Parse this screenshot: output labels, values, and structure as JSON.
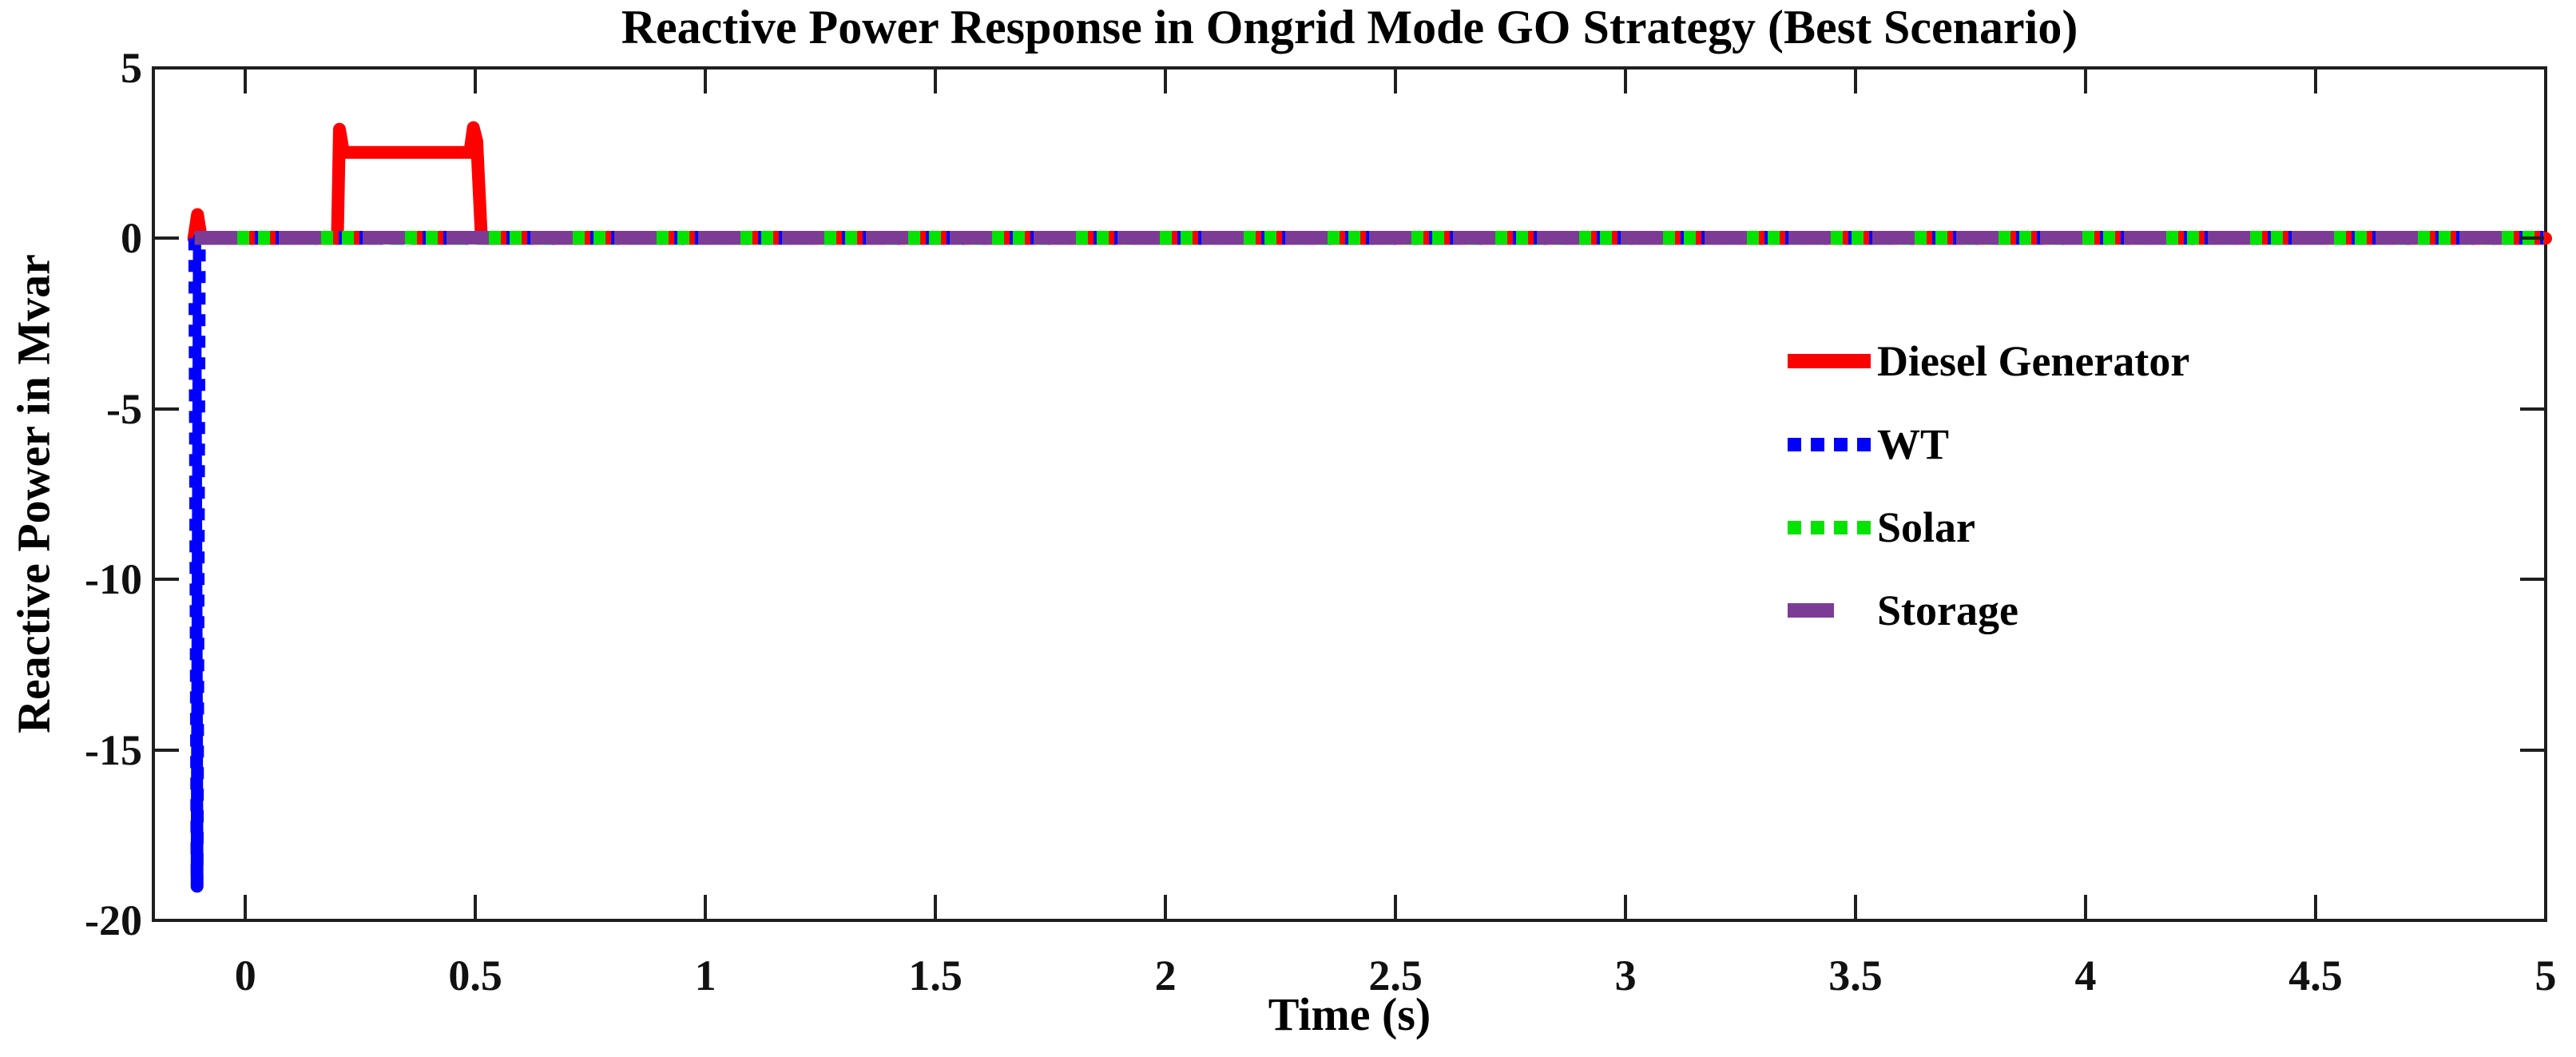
{
  "title": "Reactive Power Response in Ongrid Mode GO Strategy (Best Scenario)",
  "chart_data": {
    "type": "line",
    "title": "Reactive Power Response in Ongrid Mode GO Strategy (Best Scenario)",
    "xlabel": "Time (s)",
    "ylabel": "Reactive Power in Mvar",
    "xlim": [
      -0.2,
      5
    ],
    "ylim": [
      -20,
      5
    ],
    "grid": false,
    "box": true,
    "tick_direction": "in",
    "x_ticks": [
      0,
      0.5,
      1,
      1.5,
      2,
      2.5,
      3,
      3.5,
      4,
      4.5,
      5
    ],
    "x_tick_labels": [
      "0",
      "0.5",
      "1",
      "1.5",
      "2",
      "2.5",
      "3",
      "3.5",
      "4",
      "4.5",
      "5"
    ],
    "y_ticks": [
      5,
      0,
      -5,
      -10,
      -15,
      -20
    ],
    "y_tick_labels": [
      "5",
      "0",
      "-5",
      "-10",
      "-15",
      "-20"
    ],
    "legend_position": "middle-right",
    "series": [
      {
        "name": "Diesel Generator",
        "color": "#FF0000",
        "style": "solid",
        "points": [
          [
            -0.112,
            0
          ],
          [
            -0.104,
            0.7
          ],
          [
            -0.096,
            0
          ],
          [
            0.2,
            0
          ],
          [
            0.2045,
            3.2
          ],
          [
            0.213,
            2.52
          ],
          [
            0.488,
            2.52
          ],
          [
            0.4955,
            3.25
          ],
          [
            0.503,
            2.85
          ],
          [
            0.513,
            0
          ],
          [
            5,
            0
          ]
        ]
      },
      {
        "name": "WT",
        "color": "#0000FF",
        "style": "dotted",
        "points": [
          [
            -0.11,
            0
          ],
          [
            -0.105,
            -19
          ],
          [
            -0.1,
            0
          ],
          [
            5,
            0
          ]
        ]
      },
      {
        "name": "Solar",
        "color": "#00E400",
        "style": "dotted",
        "points": [
          [
            -0.11,
            0
          ],
          [
            5,
            0
          ]
        ]
      },
      {
        "name": "Storage",
        "color": "#7C3C96",
        "style": "dashed",
        "points": [
          [
            -0.11,
            0
          ],
          [
            5,
            0
          ]
        ]
      }
    ]
  },
  "legend": {
    "items": [
      {
        "label": "Diesel Generator",
        "color": "#FF0000",
        "style": "solid"
      },
      {
        "label": "WT",
        "color": "#0000FF",
        "style": "dotted"
      },
      {
        "label": "Solar",
        "color": "#00E400",
        "style": "dotted"
      },
      {
        "label": "Storage",
        "color": "#7C3C96",
        "style": "dashed"
      }
    ]
  }
}
